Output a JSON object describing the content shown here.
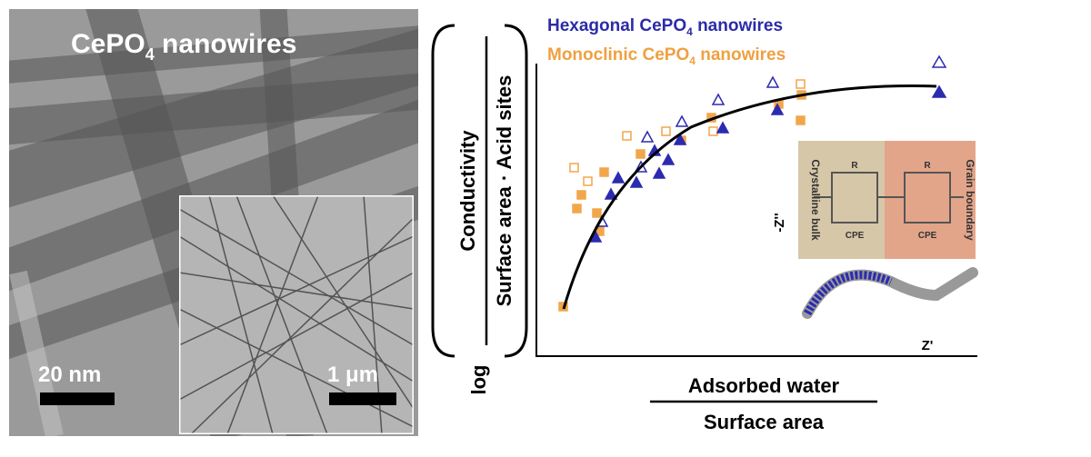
{
  "tem_image": {
    "title": {
      "before": "CePO",
      "sub": "4",
      "after": " nanowires"
    },
    "scale_bar": "20 nm",
    "inset_scale_bar": "1 μm"
  },
  "plot": {
    "legend": [
      {
        "before": "Hexagonal CePO",
        "sub": "4",
        "after": " nanowires"
      },
      {
        "before": "Monoclinic CePO",
        "sub": "4",
        "after": " nanowires"
      }
    ],
    "y_label": {
      "prefix": "log",
      "numerator": "Conductivity",
      "denominator": "Surface area · Acid sites"
    },
    "x_label": {
      "numerator": "Adsorbed water",
      "denominator": "Surface area"
    },
    "inset": {
      "y_label": "-Z''",
      "x_label": "Z'",
      "left_region": "Crystalline bulk",
      "right_region": "Grain boundary",
      "resistor": "R",
      "cpe": "CPE"
    }
  }
}
